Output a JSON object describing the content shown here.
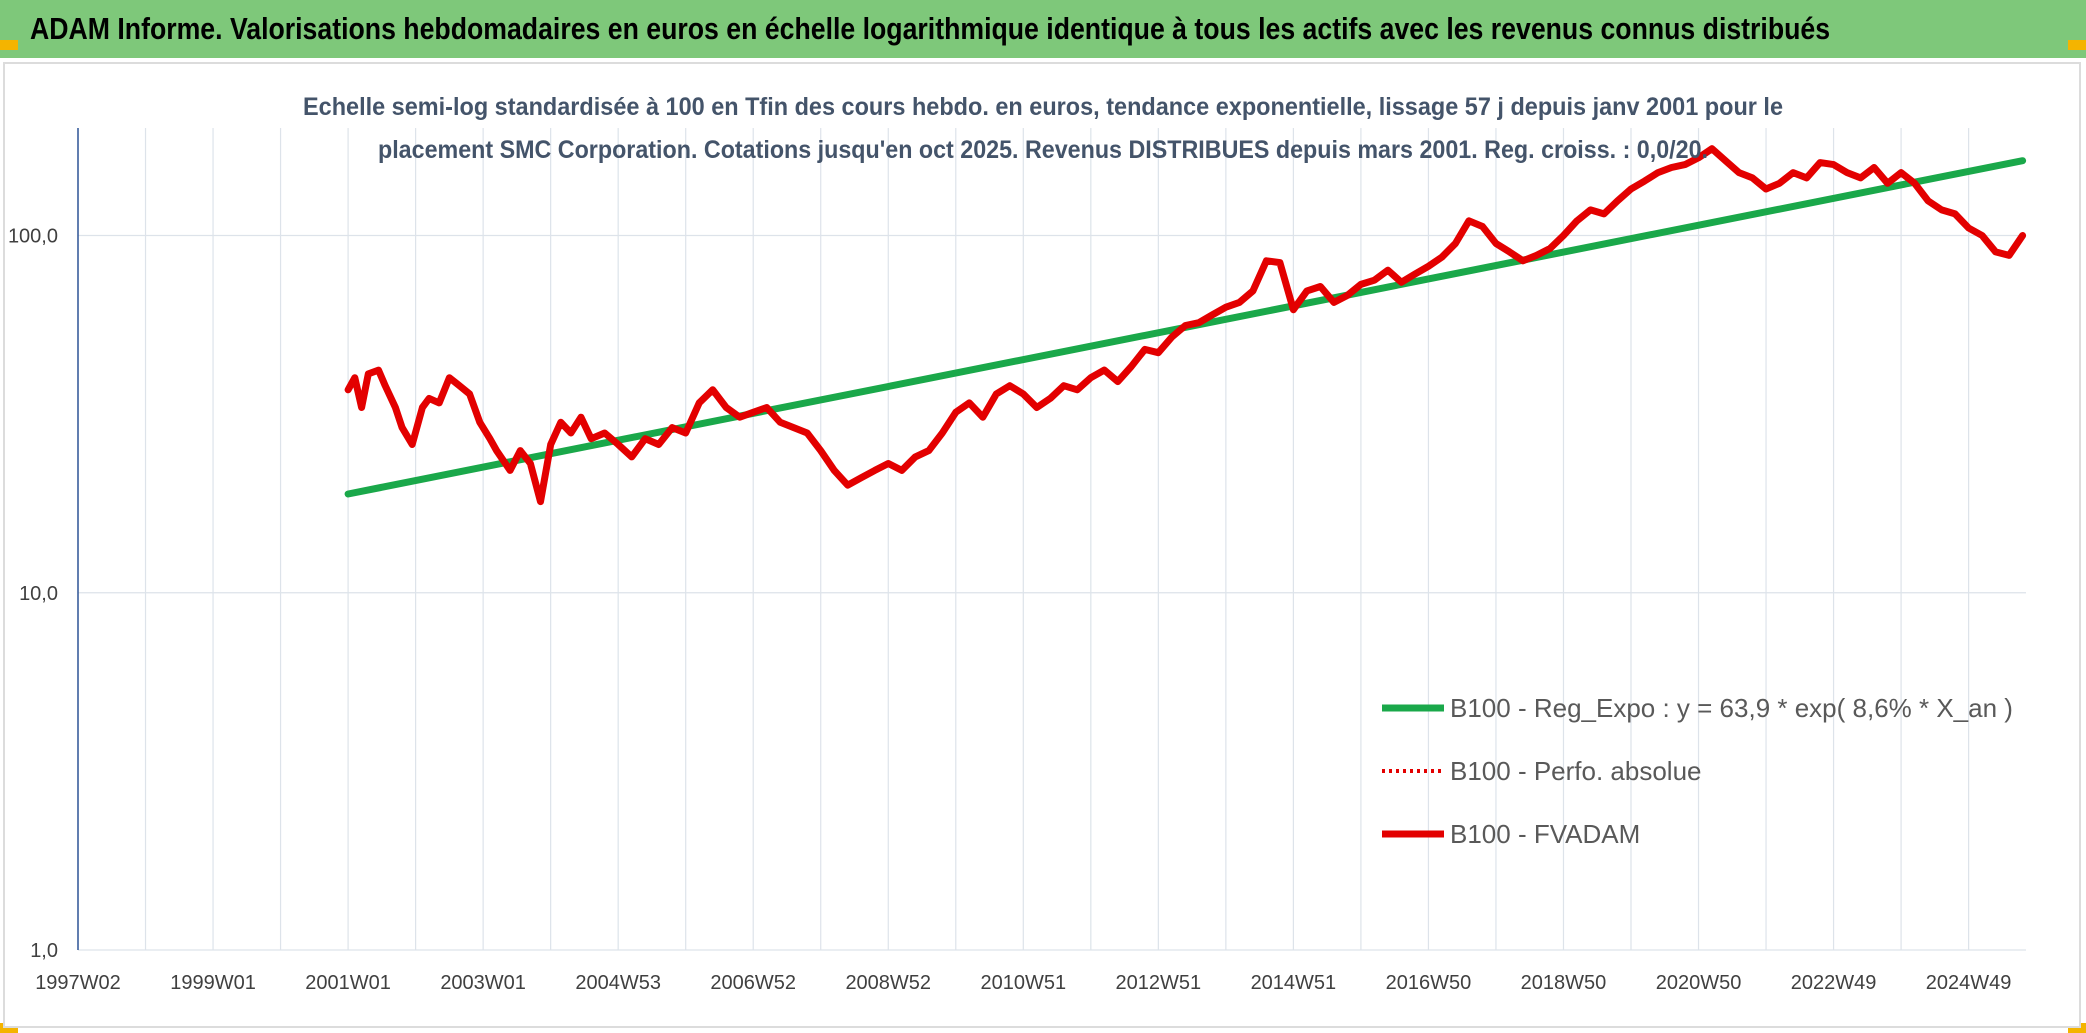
{
  "header": {
    "title": "ADAM Informe. Valorisations hebdomadaires en euros en échelle logarithmique identique à tous les actifs avec les revenus connus distribués"
  },
  "colors": {
    "header_band": "#7ec87a",
    "corner_accent": "#f4b400",
    "regression_line": "#1aa84a",
    "fvadam_line": "#e30000",
    "perfo_line": "#e30000",
    "axis_text": "#404040",
    "title_text": "#44546a"
  },
  "chart_data": {
    "type": "line",
    "title_line1": "Echelle semi-log standardisée à 100 en Tfin des cours hebdo. en euros, tendance exponentielle, lissage 57 j depuis janv 2001 pour le",
    "title_line2": "placement SMC Corporation. Cotations jusqu'en oct 2025. Revenus DISTRIBUES depuis mars 2001. Reg. croiss. : 0,0/20.",
    "y_scale": "log",
    "ylim": [
      1,
      200
    ],
    "y_ticks": [
      {
        "value": 1,
        "label": "1,0"
      },
      {
        "value": 10,
        "label": "10,0"
      },
      {
        "value": 100,
        "label": "100,0"
      }
    ],
    "xlim": [
      1997.0,
      2025.85
    ],
    "x_ticks": [
      {
        "value": 1997.0,
        "label": "1997W02"
      },
      {
        "value": 1999.0,
        "label": "1999W01"
      },
      {
        "value": 2001.0,
        "label": "2001W01"
      },
      {
        "value": 2003.0,
        "label": "2003W01"
      },
      {
        "value": 2005.0,
        "label": "2004W53"
      },
      {
        "value": 2007.0,
        "label": "2006W52"
      },
      {
        "value": 2009.0,
        "label": "2008W52"
      },
      {
        "value": 2011.0,
        "label": "2010W51"
      },
      {
        "value": 2013.0,
        "label": "2012W51"
      },
      {
        "value": 2015.0,
        "label": "2014W51"
      },
      {
        "value": 2017.0,
        "label": "2016W50"
      },
      {
        "value": 2019.0,
        "label": "2018W50"
      },
      {
        "value": 2021.0,
        "label": "2020W50"
      },
      {
        "value": 2023.0,
        "label": "2022W49"
      },
      {
        "value": 2025.0,
        "label": "2024W49"
      }
    ],
    "grid": true,
    "legend_position": "bottom-right",
    "series": [
      {
        "name": "B100 - Reg_Expo : y = 63,9 * exp( 8,6% *  X_an )",
        "style": "solid",
        "color": "#1aa84a",
        "x": [
          2001.0,
          2025.8
        ],
        "y": [
          18.9,
          162
        ]
      },
      {
        "name": "B100 - Perfo. absolue",
        "style": "dotted",
        "color": "#e30000",
        "x": [],
        "y": []
      },
      {
        "name": "B100 - FVADAM",
        "style": "solid",
        "color": "#e30000",
        "x": [
          2001.0,
          2001.1,
          2001.2,
          2001.3,
          2001.45,
          2001.55,
          2001.7,
          2001.8,
          2001.95,
          2002.1,
          2002.2,
          2002.35,
          2002.5,
          2002.65,
          2002.8,
          2002.95,
          2003.1,
          2003.2,
          2003.4,
          2003.55,
          2003.7,
          2003.85,
          2004.0,
          2004.15,
          2004.3,
          2004.45,
          2004.6,
          2004.8,
          2005.0,
          2005.2,
          2005.4,
          2005.6,
          2005.8,
          2006.0,
          2006.2,
          2006.4,
          2006.6,
          2006.8,
          2007.0,
          2007.2,
          2007.4,
          2007.6,
          2007.8,
          2008.0,
          2008.2,
          2008.4,
          2008.6,
          2008.8,
          2009.0,
          2009.2,
          2009.4,
          2009.6,
          2009.8,
          2010.0,
          2010.2,
          2010.4,
          2010.6,
          2010.8,
          2011.0,
          2011.2,
          2011.4,
          2011.6,
          2011.8,
          2012.0,
          2012.2,
          2012.4,
          2012.6,
          2012.8,
          2013.0,
          2013.2,
          2013.4,
          2013.6,
          2013.8,
          2014.0,
          2014.2,
          2014.4,
          2014.6,
          2014.8,
          2015.0,
          2015.2,
          2015.4,
          2015.6,
          2015.8,
          2016.0,
          2016.2,
          2016.4,
          2016.6,
          2016.8,
          2017.0,
          2017.2,
          2017.4,
          2017.6,
          2017.8,
          2018.0,
          2018.2,
          2018.4,
          2018.6,
          2018.8,
          2019.0,
          2019.2,
          2019.4,
          2019.6,
          2019.8,
          2020.0,
          2020.2,
          2020.4,
          2020.6,
          2020.8,
          2021.0,
          2021.2,
          2021.4,
          2021.6,
          2021.8,
          2022.0,
          2022.2,
          2022.4,
          2022.6,
          2022.8,
          2023.0,
          2023.2,
          2023.4,
          2023.6,
          2023.8,
          2024.0,
          2024.2,
          2024.4,
          2024.6,
          2024.8,
          2025.0,
          2025.2,
          2025.4,
          2025.6,
          2025.8
        ],
        "y": [
          37,
          40,
          33,
          41,
          42,
          38,
          33,
          29,
          26,
          33,
          35,
          34,
          40,
          38,
          36,
          30,
          27,
          25,
          22,
          25,
          23,
          18,
          26,
          30,
          28,
          31,
          27,
          28,
          26,
          24,
          27,
          26,
          29,
          28,
          34,
          37,
          33,
          31,
          32,
          33,
          30,
          29,
          28,
          25,
          22,
          20,
          21,
          22,
          23,
          22,
          24,
          25,
          28,
          32,
          34,
          31,
          36,
          38,
          36,
          33,
          35,
          38,
          37,
          40,
          42,
          39,
          43,
          48,
          47,
          52,
          56,
          57,
          60,
          63,
          65,
          70,
          85,
          84,
          62,
          70,
          72,
          65,
          68,
          73,
          75,
          80,
          74,
          78,
          82,
          87,
          95,
          110,
          106,
          95,
          90,
          85,
          88,
          92,
          100,
          110,
          118,
          115,
          125,
          135,
          142,
          150,
          155,
          158,
          165,
          175,
          162,
          150,
          145,
          135,
          140,
          150,
          145,
          160,
          158,
          150,
          145,
          155,
          140,
          150,
          140,
          125,
          118,
          115,
          105,
          100,
          90,
          88,
          100
        ]
      }
    ]
  }
}
